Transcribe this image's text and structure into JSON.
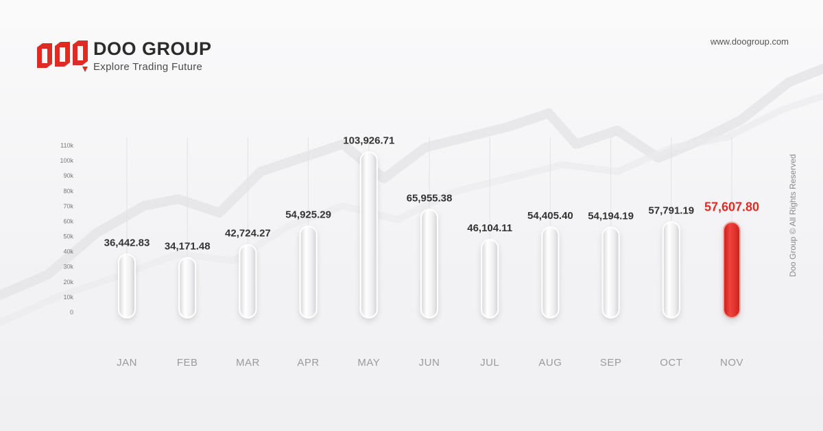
{
  "brand": {
    "name": "DOO GROUP",
    "tagline": "Explore Trading Future",
    "logo_text": "DOO",
    "accent_color": "#e02b25"
  },
  "site_url": "www.doogroup.com",
  "copyright": "Doo Group © All Rights Reserved",
  "chart_data": {
    "type": "bar",
    "categories": [
      "JAN",
      "FEB",
      "MAR",
      "APR",
      "MAY",
      "JUN",
      "JUL",
      "AUG",
      "SEP",
      "OCT",
      "NOV"
    ],
    "values": [
      36442.83,
      34171.48,
      42724.27,
      54925.29,
      103926.71,
      65955.38,
      46104.11,
      54405.4,
      54194.19,
      57791.19,
      57607.8
    ],
    "data_labels": [
      "36,442.83",
      "34,171.48",
      "42,724.27",
      "54,925.29",
      "103,926.71",
      "65,955.38",
      "46,104.11",
      "54,405.40",
      "54,194.19",
      "57,791.19",
      "57,607.80"
    ],
    "highlight_category": "NOV",
    "ylim": [
      0,
      110000
    ],
    "yticks": [
      "0",
      "10k",
      "20k",
      "30k",
      "40k",
      "50k",
      "60k",
      "70k",
      "80k",
      "90k",
      "100k",
      "110k"
    ],
    "grid": false,
    "bar_color": "#e8e8ea",
    "highlight_color": "#e02b25"
  }
}
